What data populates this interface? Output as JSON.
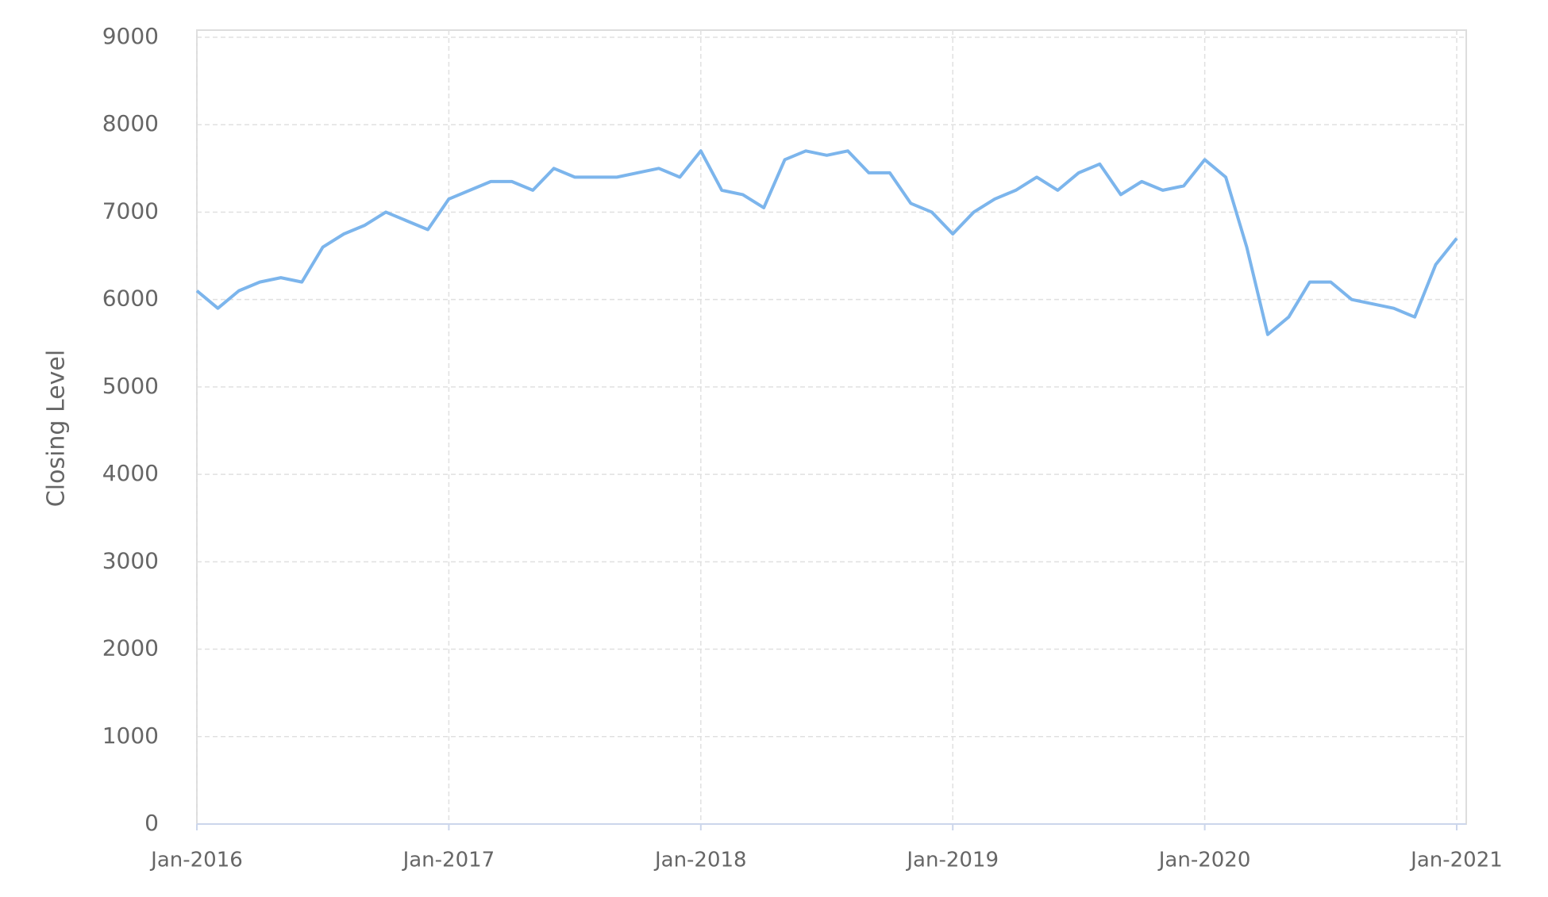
{
  "chart_data": {
    "type": "line",
    "y_label": "Closing Level",
    "x": [
      "2016-01",
      "2016-02",
      "2016-03",
      "2016-04",
      "2016-05",
      "2016-06",
      "2016-07",
      "2016-08",
      "2016-09",
      "2016-10",
      "2016-11",
      "2016-12",
      "2017-01",
      "2017-02",
      "2017-03",
      "2017-04",
      "2017-05",
      "2017-06",
      "2017-07",
      "2017-08",
      "2017-09",
      "2017-10",
      "2017-11",
      "2017-12",
      "2018-01",
      "2018-02",
      "2018-03",
      "2018-04",
      "2018-05",
      "2018-06",
      "2018-07",
      "2018-08",
      "2018-09",
      "2018-10",
      "2018-11",
      "2018-12",
      "2019-01",
      "2019-02",
      "2019-03",
      "2019-04",
      "2019-05",
      "2019-06",
      "2019-07",
      "2019-08",
      "2019-09",
      "2019-10",
      "2019-11",
      "2019-12",
      "2020-01",
      "2020-02",
      "2020-03",
      "2020-04",
      "2020-05",
      "2020-06",
      "2020-07",
      "2020-08",
      "2020-09",
      "2020-10",
      "2020-11",
      "2020-12",
      "2021-01"
    ],
    "series": [
      {
        "color": "#7cb5ec",
        "values": [
          6100,
          5900,
          6100,
          6200,
          6250,
          6200,
          6600,
          6750,
          6850,
          7000,
          6900,
          6800,
          7150,
          7250,
          7350,
          7350,
          7250,
          7500,
          7400,
          7400,
          7400,
          7450,
          7500,
          7400,
          7700,
          7250,
          7200,
          7050,
          7600,
          7700,
          7650,
          7700,
          7450,
          7450,
          7100,
          7000,
          6750,
          7000,
          7150,
          7250,
          7400,
          7250,
          7450,
          7550,
          7200,
          7350,
          7250,
          7300,
          7600,
          7400,
          6600,
          5600,
          5800,
          6200,
          6200,
          6000,
          5950,
          5900,
          5800,
          6400,
          6700
        ]
      }
    ],
    "xlim": [
      "2016-01",
      "2021-01"
    ],
    "xticks": [
      {
        "value": "2016-01",
        "label": "Jan-2016"
      },
      {
        "value": "2017-01",
        "label": "Jan-2017"
      },
      {
        "value": "2018-01",
        "label": "Jan-2018"
      },
      {
        "value": "2019-01",
        "label": "Jan-2019"
      },
      {
        "value": "2020-01",
        "label": "Jan-2020"
      },
      {
        "value": "2021-01",
        "label": "Jan-2021"
      }
    ],
    "ylim": [
      0,
      9000
    ],
    "yticks": [
      0,
      1000,
      2000,
      3000,
      4000,
      5000,
      6000,
      7000,
      8000,
      9000
    ],
    "grid": true
  }
}
